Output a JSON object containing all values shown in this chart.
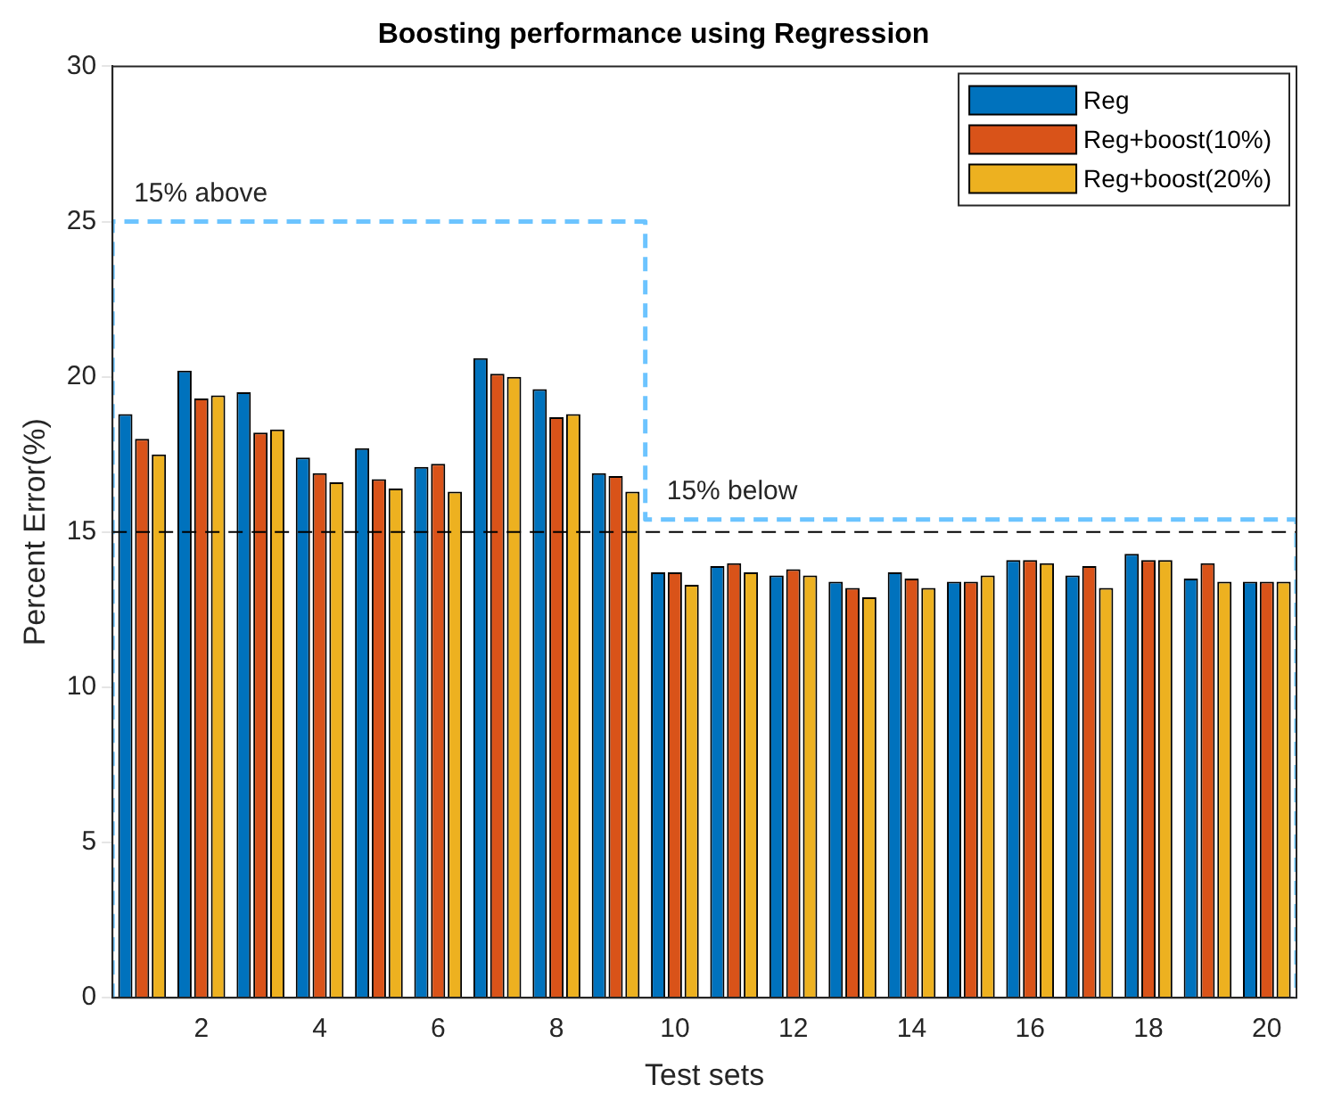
{
  "chart_data": {
    "type": "bar",
    "title": "Boosting performance using Regression",
    "xlabel": "Test sets",
    "ylabel": "Percent Error(%)",
    "x": [
      1,
      2,
      3,
      4,
      5,
      6,
      7,
      8,
      9,
      10,
      11,
      12,
      13,
      14,
      15,
      16,
      17,
      18,
      19,
      20
    ],
    "series": [
      {
        "name": "Reg",
        "color": "#0072bd",
        "values": [
          18.8,
          20.2,
          19.5,
          17.4,
          17.7,
          17.1,
          20.6,
          19.6,
          16.9,
          13.7,
          13.9,
          13.6,
          13.4,
          13.7,
          13.4,
          14.1,
          13.6,
          14.3,
          13.5,
          13.4
        ]
      },
      {
        "name": "Reg+boost(10%)",
        "color": "#d95319",
        "values": [
          18.0,
          19.3,
          18.2,
          16.9,
          16.7,
          17.2,
          20.1,
          18.7,
          16.8,
          13.7,
          14.0,
          13.8,
          13.2,
          13.5,
          13.4,
          14.1,
          13.9,
          14.1,
          14.0,
          13.4
        ]
      },
      {
        "name": "Reg+boost(20%)",
        "color": "#edb120",
        "values": [
          17.5,
          19.4,
          18.3,
          16.6,
          16.4,
          16.3,
          20.0,
          18.8,
          16.3,
          13.3,
          13.7,
          13.6,
          12.9,
          13.2,
          13.6,
          14.0,
          13.2,
          14.1,
          13.4,
          13.4
        ]
      },
      {
        "type": "line",
        "color": "#6cc4ff",
        "line_style": "dashed",
        "x": [
          0.5,
          0.5,
          9.5,
          9.5,
          20.5,
          20.5
        ],
        "values": [
          0,
          25,
          25,
          15.4,
          15.4,
          0
        ]
      }
    ],
    "xlim": [
      0.5,
      20.5
    ],
    "xticks": [
      2,
      4,
      6,
      8,
      10,
      12,
      14,
      16,
      18,
      20
    ],
    "ylim": [
      0,
      30
    ],
    "yticks": [
      0,
      5,
      10,
      15,
      20,
      25,
      30
    ],
    "ref_lines": [
      {
        "axis": "y",
        "value": 15,
        "color": "#000000",
        "line_style": "dashed"
      }
    ],
    "annotations": [
      "15% above",
      "15% below"
    ],
    "grid": false,
    "legend": "top right",
    "marker": "none"
  }
}
